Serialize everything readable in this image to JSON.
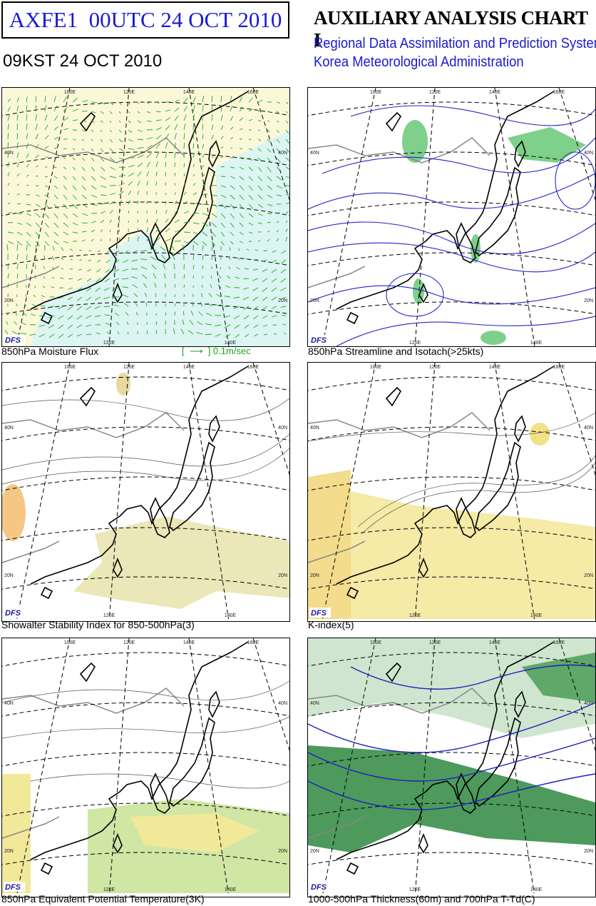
{
  "header": {
    "box_title": "AXFE1  00UTC 24 OCT 2010",
    "local_time": "09KST 24 OCT 2010",
    "chart_title": "AUXILIARY ANALYSIS CHART I",
    "subtitle_lines": [
      "Regional Data Assimilation and Prediction System",
      "Korea Meteorological Administration"
    ]
  },
  "map_labels": {
    "lon": [
      "100E",
      "120E",
      "140E",
      "160E"
    ],
    "lat": [
      "40N",
      "20N"
    ],
    "logo": "DFS"
  },
  "panels": [
    {
      "caption": "850hPa Moisture Flux",
      "legend": "[  ⟶  ] 0.1m/sec"
    },
    {
      "caption": "850hPa Streamline and Isotach(>25kts)"
    },
    {
      "caption": "Showalter Stability Index for 850-500hPa(3)"
    },
    {
      "caption": "K-index(5)"
    },
    {
      "caption": "850hPa Equivalent Potential Temperature(3K)"
    },
    {
      "caption": "1000-500hPa Thickness(60m) and 700hPa T-Td(C)"
    }
  ]
}
